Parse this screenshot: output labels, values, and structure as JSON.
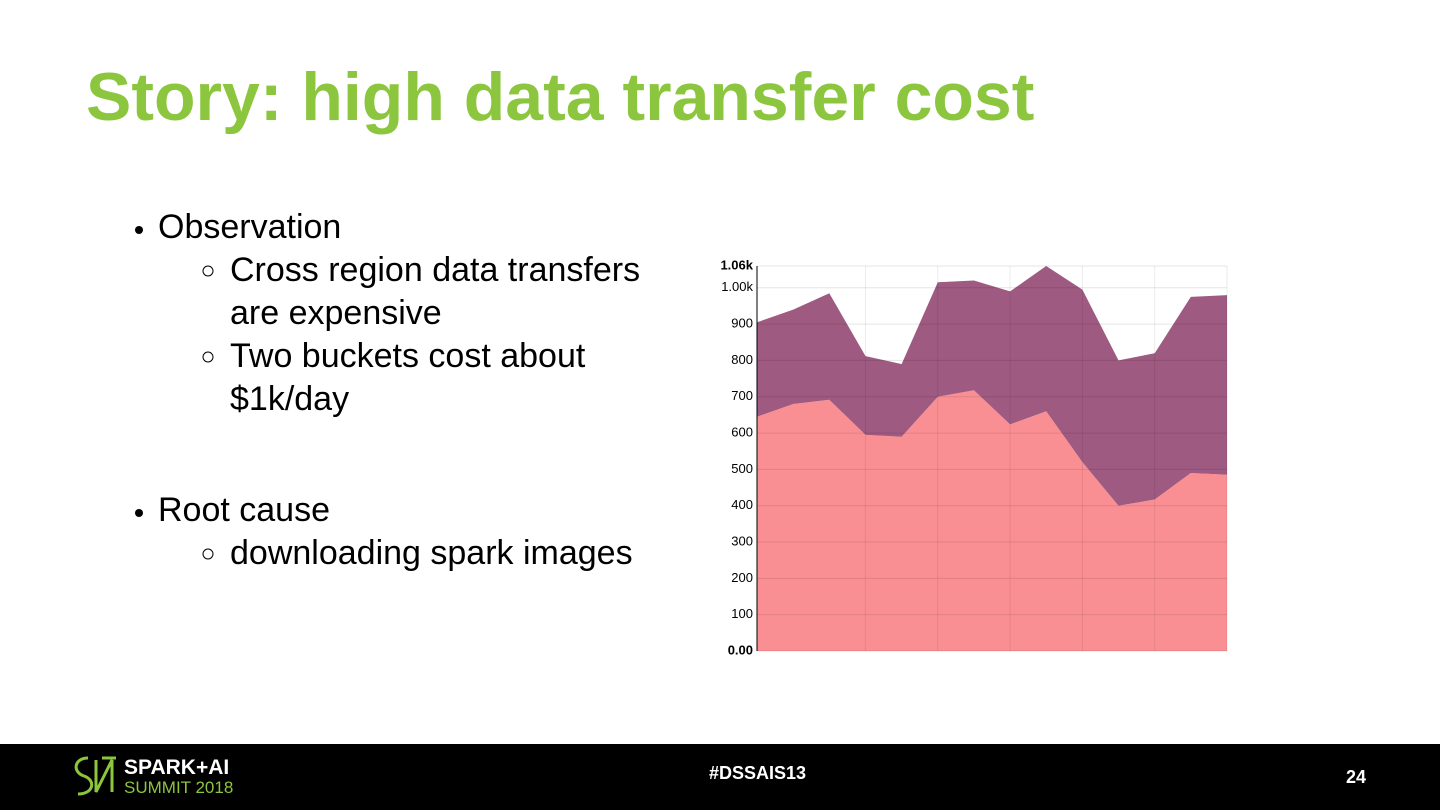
{
  "title": "Story: high data transfer cost",
  "bullets": [
    {
      "text": "Observation",
      "sub": [
        "Cross region data transfers are expensive",
        "Two buckets cost about $1k/day"
      ]
    },
    {
      "text": "Root cause",
      "sub": [
        "downloading spark images"
      ]
    }
  ],
  "footer": {
    "logo_line1": "SPARK+AI",
    "logo_line2": "SUMMIT 2018",
    "hashtag": "#DSSAIS13",
    "page": "24"
  },
  "chart_data": {
    "type": "stacked-area",
    "categories": [
      null,
      null,
      null,
      null,
      null,
      null,
      null,
      null,
      null,
      null,
      null,
      null,
      null,
      null
    ],
    "series": [
      {
        "color": "#f98f93",
        "values": [
          645,
          680,
          692,
          595,
          590,
          700,
          718,
          624,
          660,
          520,
          400,
          417,
          490,
          485
        ]
      },
      {
        "color": "#9e5a80",
        "values": [
          260,
          260,
          293,
          217,
          200,
          315,
          302,
          366,
          400,
          475,
          400,
          403,
          485,
          495
        ]
      }
    ],
    "ylim": [
      0,
      1060
    ],
    "yticks": [
      {
        "value": 0,
        "label": "0.00"
      },
      100,
      200,
      300,
      400,
      500,
      600,
      700,
      800,
      900,
      {
        "value": 1000,
        "label": "1.00k"
      },
      {
        "value": 1060,
        "label": "1.06k"
      }
    ],
    "grid": true
  }
}
